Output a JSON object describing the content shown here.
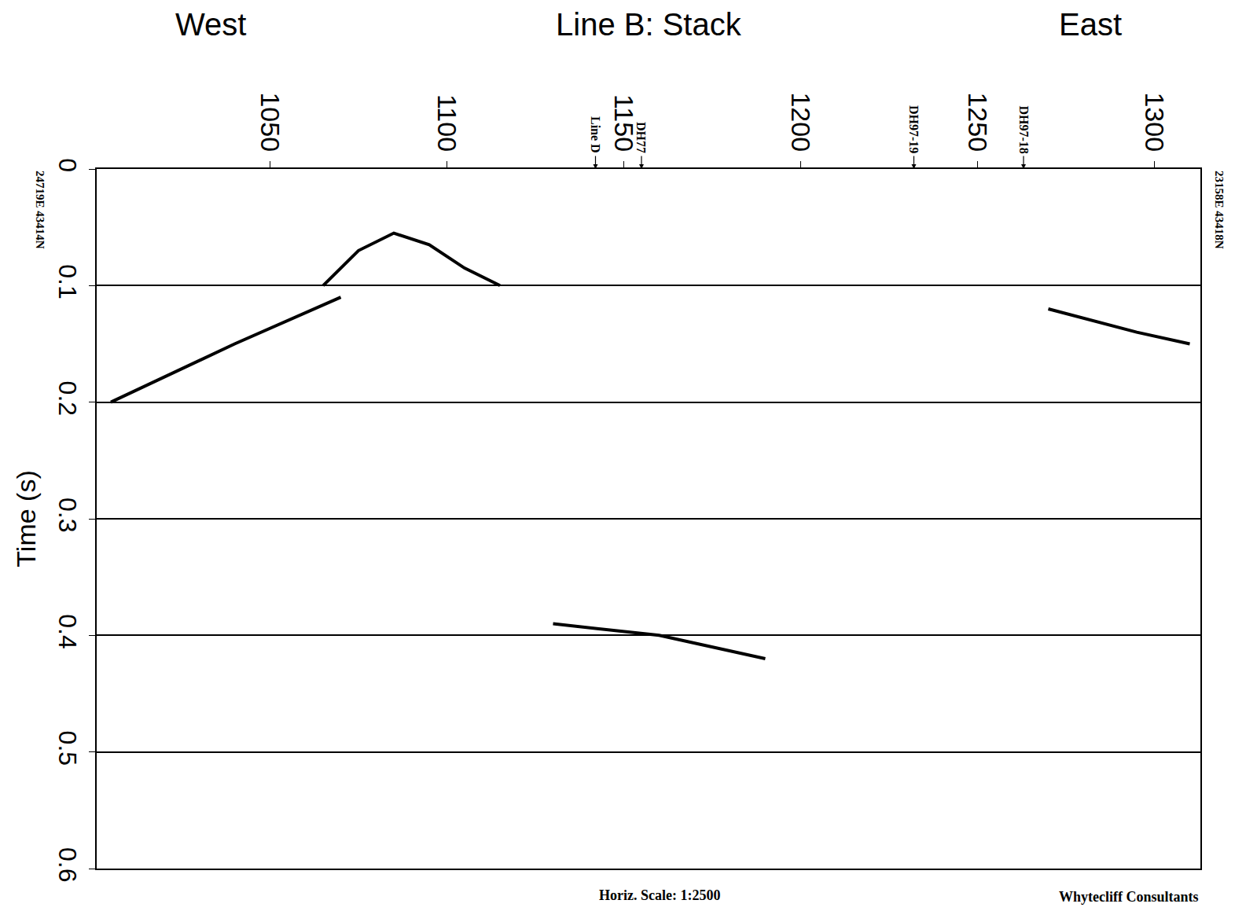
{
  "chart_data": {
    "type": "line",
    "title": "Line B: Stack",
    "left_label": "West",
    "right_label": "East",
    "y_label": "Time (s)",
    "xlim": [
      1001,
      1313
    ],
    "xticks": [
      1050,
      1100,
      1150,
      1200,
      1250,
      1300
    ],
    "ylim": [
      0,
      0.6
    ],
    "yticks": [
      0,
      0.1,
      0.2,
      0.3,
      0.4,
      0.5,
      0.6
    ],
    "grid": true,
    "color": "#000000",
    "markers": [
      {
        "x": 1142,
        "label": "Line D"
      },
      {
        "x": 1155,
        "label": "DH77"
      },
      {
        "x": 1232,
        "label": "DH97-19"
      },
      {
        "x": 1263,
        "label": "DH97-18"
      }
    ],
    "left_coordinates": "24719E 43414N",
    "right_coordinates": "23158E 43418N",
    "scale_note": "Horiz. Scale: 1:2500",
    "credit": "Whytecliff Consultants",
    "series": [
      {
        "x": [
          1065,
          1075,
          1085,
          1095,
          1105,
          1115
        ],
        "y": [
          0.1,
          0.07,
          0.055,
          0.065,
          0.085,
          0.1
        ]
      },
      {
        "x": [
          1005,
          1040,
          1070
        ],
        "y": [
          0.2,
          0.15,
          0.11
        ]
      },
      {
        "x": [
          1130,
          1160,
          1190
        ],
        "y": [
          0.39,
          0.4,
          0.42
        ]
      },
      {
        "x": [
          1270,
          1295,
          1310
        ],
        "y": [
          0.12,
          0.14,
          0.15
        ]
      }
    ]
  }
}
